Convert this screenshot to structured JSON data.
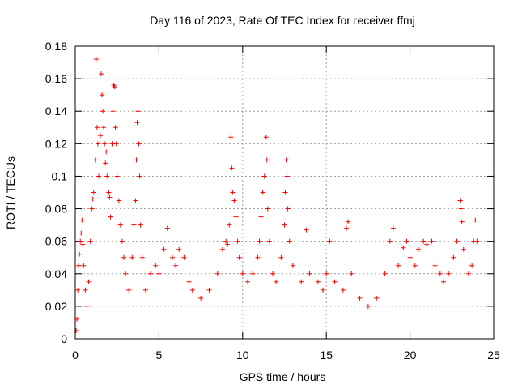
{
  "chart_data": {
    "type": "scatter",
    "title": "Day 116 of 2023, Rate Of TEC Index for receiver ffmj",
    "xlabel": "GPS time / hours",
    "ylabel": "ROTI / TECUs",
    "xlim": [
      0,
      25
    ],
    "ylim": [
      0,
      0.18
    ],
    "xticks": [
      0,
      5,
      10,
      15,
      20,
      25
    ],
    "xtick_labels": [
      "0",
      "5",
      "10",
      "15",
      "20",
      "25"
    ],
    "yticks": [
      0,
      0.02,
      0.04,
      0.06,
      0.08,
      0.1,
      0.12,
      0.14,
      0.16,
      0.18
    ],
    "ytick_labels": [
      "0",
      "0.02",
      "0.04",
      "0.06",
      "0.08",
      "0.1",
      "0.12",
      "0.14",
      "0.16",
      "0.18"
    ],
    "grid": true,
    "marker": "+",
    "color": "#ff0000",
    "series": [
      {
        "name": "ROTI",
        "points": [
          [
            0.05,
            0.005
          ],
          [
            0.1,
            0.012
          ],
          [
            0.15,
            0.03
          ],
          [
            0.2,
            0.045
          ],
          [
            0.25,
            0.052
          ],
          [
            0.3,
            0.06
          ],
          [
            0.35,
            0.065
          ],
          [
            0.4,
            0.073
          ],
          [
            0.45,
            0.058
          ],
          [
            0.5,
            0.045
          ],
          [
            0.6,
            0.03
          ],
          [
            0.7,
            0.02
          ],
          [
            0.8,
            0.035
          ],
          [
            0.9,
            0.06
          ],
          [
            1.0,
            0.08
          ],
          [
            1.05,
            0.086
          ],
          [
            1.1,
            0.09
          ],
          [
            1.2,
            0.11
          ],
          [
            1.25,
            0.172
          ],
          [
            1.3,
            0.13
          ],
          [
            1.35,
            0.12
          ],
          [
            1.4,
            0.1
          ],
          [
            1.5,
            0.125
          ],
          [
            1.55,
            0.163
          ],
          [
            1.6,
            0.15
          ],
          [
            1.65,
            0.14
          ],
          [
            1.7,
            0.13
          ],
          [
            1.75,
            0.12
          ],
          [
            1.8,
            0.108
          ],
          [
            1.85,
            0.115
          ],
          [
            1.9,
            0.1
          ],
          [
            2.0,
            0.09
          ],
          [
            2.05,
            0.087
          ],
          [
            2.1,
            0.075
          ],
          [
            2.2,
            0.12
          ],
          [
            2.25,
            0.14
          ],
          [
            2.3,
            0.156
          ],
          [
            2.35,
            0.155
          ],
          [
            2.4,
            0.13
          ],
          [
            2.45,
            0.12
          ],
          [
            2.5,
            0.1
          ],
          [
            2.6,
            0.085
          ],
          [
            2.7,
            0.07
          ],
          [
            2.8,
            0.06
          ],
          [
            2.9,
            0.05
          ],
          [
            3.0,
            0.04
          ],
          [
            3.2,
            0.03
          ],
          [
            3.4,
            0.05
          ],
          [
            3.5,
            0.07
          ],
          [
            3.6,
            0.085
          ],
          [
            3.65,
            0.11
          ],
          [
            3.7,
            0.133
          ],
          [
            3.75,
            0.14
          ],
          [
            3.8,
            0.12
          ],
          [
            3.85,
            0.1
          ],
          [
            3.9,
            0.07
          ],
          [
            4.0,
            0.05
          ],
          [
            4.2,
            0.03
          ],
          [
            4.5,
            0.04
          ],
          [
            4.8,
            0.045
          ],
          [
            5.0,
            0.04
          ],
          [
            5.3,
            0.055
          ],
          [
            5.5,
            0.068
          ],
          [
            5.8,
            0.05
          ],
          [
            6.0,
            0.045
          ],
          [
            6.2,
            0.055
          ],
          [
            6.5,
            0.05
          ],
          [
            6.8,
            0.035
          ],
          [
            7.0,
            0.03
          ],
          [
            7.5,
            0.025
          ],
          [
            8.0,
            0.03
          ],
          [
            8.5,
            0.04
          ],
          [
            8.8,
            0.055
          ],
          [
            9.0,
            0.06
          ],
          [
            9.1,
            0.058
          ],
          [
            9.2,
            0.07
          ],
          [
            9.3,
            0.124
          ],
          [
            9.35,
            0.105
          ],
          [
            9.4,
            0.09
          ],
          [
            9.5,
            0.085
          ],
          [
            9.6,
            0.075
          ],
          [
            9.7,
            0.06
          ],
          [
            9.8,
            0.05
          ],
          [
            10.0,
            0.04
          ],
          [
            10.3,
            0.035
          ],
          [
            10.6,
            0.04
          ],
          [
            10.9,
            0.05
          ],
          [
            11.0,
            0.06
          ],
          [
            11.1,
            0.075
          ],
          [
            11.2,
            0.09
          ],
          [
            11.3,
            0.1
          ],
          [
            11.4,
            0.124
          ],
          [
            11.45,
            0.11
          ],
          [
            11.5,
            0.08
          ],
          [
            11.6,
            0.06
          ],
          [
            11.8,
            0.04
          ],
          [
            12.0,
            0.035
          ],
          [
            12.3,
            0.05
          ],
          [
            12.5,
            0.07
          ],
          [
            12.55,
            0.09
          ],
          [
            12.6,
            0.11
          ],
          [
            12.65,
            0.1
          ],
          [
            12.7,
            0.08
          ],
          [
            12.8,
            0.06
          ],
          [
            13.0,
            0.045
          ],
          [
            13.5,
            0.035
          ],
          [
            13.8,
            0.067
          ],
          [
            14.0,
            0.04
          ],
          [
            14.5,
            0.035
          ],
          [
            14.8,
            0.03
          ],
          [
            15.0,
            0.04
          ],
          [
            15.2,
            0.06
          ],
          [
            15.5,
            0.035
          ],
          [
            16.0,
            0.03
          ],
          [
            16.2,
            0.068
          ],
          [
            16.3,
            0.072
          ],
          [
            16.5,
            0.04
          ],
          [
            17.0,
            0.025
          ],
          [
            17.5,
            0.02
          ],
          [
            18.0,
            0.025
          ],
          [
            18.5,
            0.04
          ],
          [
            18.8,
            0.06
          ],
          [
            19.0,
            0.068
          ],
          [
            19.3,
            0.045
          ],
          [
            19.6,
            0.056
          ],
          [
            19.8,
            0.06
          ],
          [
            20.0,
            0.05
          ],
          [
            20.3,
            0.045
          ],
          [
            20.5,
            0.055
          ],
          [
            20.8,
            0.06
          ],
          [
            21.0,
            0.058
          ],
          [
            21.3,
            0.06
          ],
          [
            21.5,
            0.045
          ],
          [
            21.8,
            0.04
          ],
          [
            22.0,
            0.035
          ],
          [
            22.3,
            0.04
          ],
          [
            22.6,
            0.05
          ],
          [
            22.8,
            0.06
          ],
          [
            23.0,
            0.085
          ],
          [
            23.05,
            0.08
          ],
          [
            23.1,
            0.072
          ],
          [
            23.2,
            0.055
          ],
          [
            23.5,
            0.04
          ],
          [
            23.7,
            0.045
          ],
          [
            23.8,
            0.06
          ],
          [
            23.9,
            0.073
          ],
          [
            24.0,
            0.06
          ]
        ]
      }
    ]
  }
}
